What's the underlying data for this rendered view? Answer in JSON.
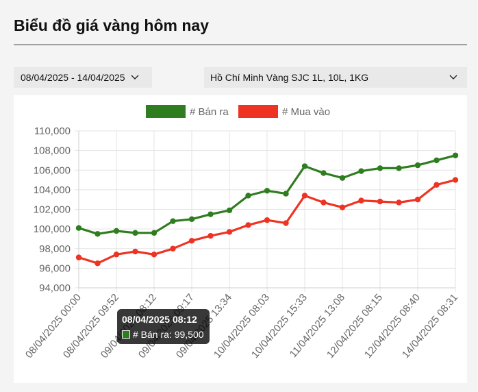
{
  "header": {
    "title": "Biểu đồ giá vàng hôm nay"
  },
  "filters": {
    "date_range": "08/04/2025 - 14/04/2025",
    "location": "Hồ Chí Minh Vàng SJC 1L, 10L, 1KG"
  },
  "tooltip": {
    "title": "08/04/2025 08:12",
    "label": "# Bán ra: 99,500",
    "swatch_color": "#2e7d1f"
  },
  "chart_data": {
    "type": "line",
    "title": "",
    "xlabel": "",
    "ylabel": "",
    "ylim": [
      94000,
      110000
    ],
    "y_ticks": [
      "110,000",
      "108,000",
      "106,000",
      "104,000",
      "102,000",
      "100,000",
      "98,000",
      "96,000",
      "94,000"
    ],
    "x_ticks": [
      "08/04/2025 00:00",
      "08/04/2025 09:52",
      "09/04/2025 08:12",
      "09/04/2025 09:17",
      "09/04/2025 13:34",
      "10/04/2025 08:03",
      "10/04/2025 15:33",
      "11/04/2025 13:08",
      "12/04/2025 08:15",
      "12/04/2025 08:40",
      "14/04/2025 08:31"
    ],
    "point_count": 21,
    "grid": true,
    "legend_position": "top",
    "series": [
      {
        "name": "# Bán ra",
        "color": "#2e7d1f",
        "values": [
          100100,
          99500,
          99800,
          99600,
          99600,
          100800,
          101000,
          101500,
          101900,
          103400,
          103900,
          103600,
          106400,
          105700,
          105200,
          105900,
          106200,
          106200,
          106500,
          107000,
          107500
        ]
      },
      {
        "name": "# Mua vào",
        "color": "#ee3322",
        "values": [
          97100,
          96500,
          97400,
          97700,
          97400,
          98000,
          98800,
          99300,
          99700,
          100400,
          100900,
          100600,
          103400,
          102700,
          102200,
          102900,
          102800,
          102700,
          103000,
          104500,
          105000
        ]
      }
    ]
  }
}
